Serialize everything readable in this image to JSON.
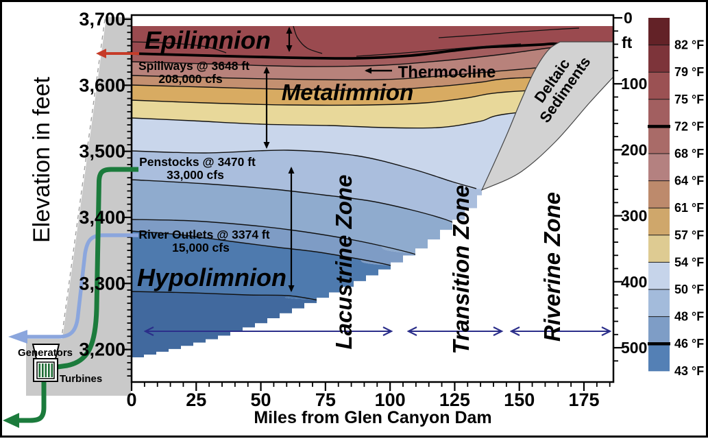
{
  "figure": {
    "region_labels": {
      "epilimnion": "Epilimnion",
      "metalimnion": "Metalimnion",
      "hypolimnion": "Hypolimnion",
      "thermocline": "Thermocline"
    },
    "outlets": {
      "spillways_line1": "Spillways @ 3648 ft",
      "spillways_line2": "208,000 cfs",
      "penstocks_line1": "Penstocks @ 3470 ft",
      "penstocks_line2": "33,000 cfs",
      "river_outlets_line1": "River Outlets @ 3374 ft",
      "river_outlets_line2": "15,000 cfs"
    },
    "dam": {
      "generators": "Generators",
      "turbines": "Turbines"
    },
    "zones": {
      "lacustrine": "Lacustrine Zone",
      "transition": "Transition Zone",
      "riverine": "Riverine Zone"
    },
    "deltaic": {
      "line1": "Deltaic",
      "line2": "Sediments"
    },
    "axes": {
      "left": {
        "label": "Elevation in feet",
        "ticks": [
          "3,700",
          "3,600",
          "3,500",
          "3,400",
          "3,300",
          "3,200"
        ]
      },
      "bottom": {
        "label": "Miles from Glen Canyon Dam",
        "ticks": [
          "0",
          "25",
          "50",
          "75",
          "100",
          "125",
          "150",
          "175"
        ]
      },
      "right": {
        "unit": "ft",
        "ticks": [
          "0",
          "100",
          "200",
          "300",
          "400",
          "500"
        ]
      }
    },
    "colorbar": {
      "labels": [
        "82 °F",
        "79 °F",
        "75 °F",
        "72 °F",
        "68 °F",
        "64 °F",
        "61 °F",
        "57 °F",
        "54 °F",
        "50 °F",
        "48 °F",
        "46 °F",
        "43 °F"
      ],
      "colors": [
        "#632227",
        "#7d343a",
        "#9b5153",
        "#a25f60",
        "#a96b68",
        "#b48180",
        "#bd8a6c",
        "#cfa76b",
        "#decb92",
        "#c6d4ea",
        "#a3bbdb",
        "#7e9dc6",
        "#5480b5"
      ],
      "thick_line_labels": [
        "72 °F",
        "46 °F"
      ]
    },
    "layer_colors": [
      "#9a4a4f",
      "#a35d5e",
      "#b8827b",
      "#c49070",
      "#d8ab62",
      "#e8d89a",
      "#c9d6eb",
      "#aabedd",
      "#8fabce",
      "#7e9cc5",
      "#4e7aae",
      "#41699e"
    ],
    "accent_colors": {
      "spillway_arrow": "#c63b28",
      "penstock_pipe": "#1b7b3c",
      "river_outlet_pipe": "#8ba6dd",
      "zone_arrow": "#2b2e8a",
      "dam_gray": "#c9c9c9",
      "sediment_gray": "#d2d2d2"
    }
  }
}
